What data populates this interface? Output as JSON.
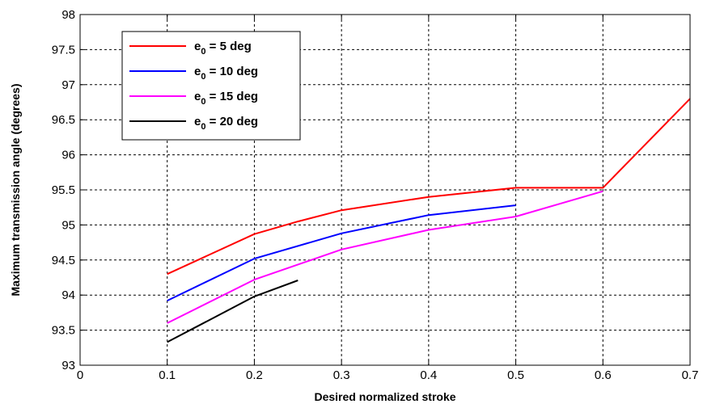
{
  "chart_data": {
    "type": "line",
    "title": "",
    "xlabel": "Desired normalized stroke",
    "ylabel": "Maximum transmission angle (degrees)",
    "xlim": [
      0,
      0.7
    ],
    "ylim": [
      93,
      98
    ],
    "xticks": [
      "0",
      "0.1",
      "0.2",
      "0.3",
      "0.4",
      "0.5",
      "0.6",
      "0.7"
    ],
    "yticks": [
      "93",
      "93.5",
      "94",
      "94.5",
      "95",
      "95.5",
      "96",
      "96.5",
      "97",
      "97.5",
      "98"
    ],
    "grid": true,
    "legend_position": "top-left",
    "series": [
      {
        "name_prefix": "e",
        "name_sub": "0",
        "name_suffix": " = 5 deg",
        "color": "#ff0000",
        "x": [
          0.1,
          0.2,
          0.25,
          0.3,
          0.4,
          0.5,
          0.6,
          0.7
        ],
        "y": [
          94.3,
          94.87,
          95.05,
          95.21,
          95.4,
          95.53,
          95.53,
          96.8
        ]
      },
      {
        "name_prefix": "e",
        "name_sub": "0",
        "name_suffix": " = 10 deg",
        "color": "#0000ff",
        "x": [
          0.1,
          0.2,
          0.3,
          0.4,
          0.5
        ],
        "y": [
          93.92,
          94.52,
          94.88,
          95.14,
          95.28
        ]
      },
      {
        "name_prefix": "e",
        "name_sub": "0",
        "name_suffix": " = 15 deg",
        "color": "#ff00ff",
        "x": [
          0.1,
          0.2,
          0.3,
          0.4,
          0.5,
          0.6
        ],
        "y": [
          93.6,
          94.22,
          94.65,
          94.93,
          95.12,
          95.48
        ]
      },
      {
        "name_prefix": "e",
        "name_sub": "0",
        "name_suffix": " = 20 deg",
        "color": "#000000",
        "x": [
          0.1,
          0.2,
          0.25
        ],
        "y": [
          93.33,
          93.98,
          94.21
        ]
      }
    ]
  }
}
